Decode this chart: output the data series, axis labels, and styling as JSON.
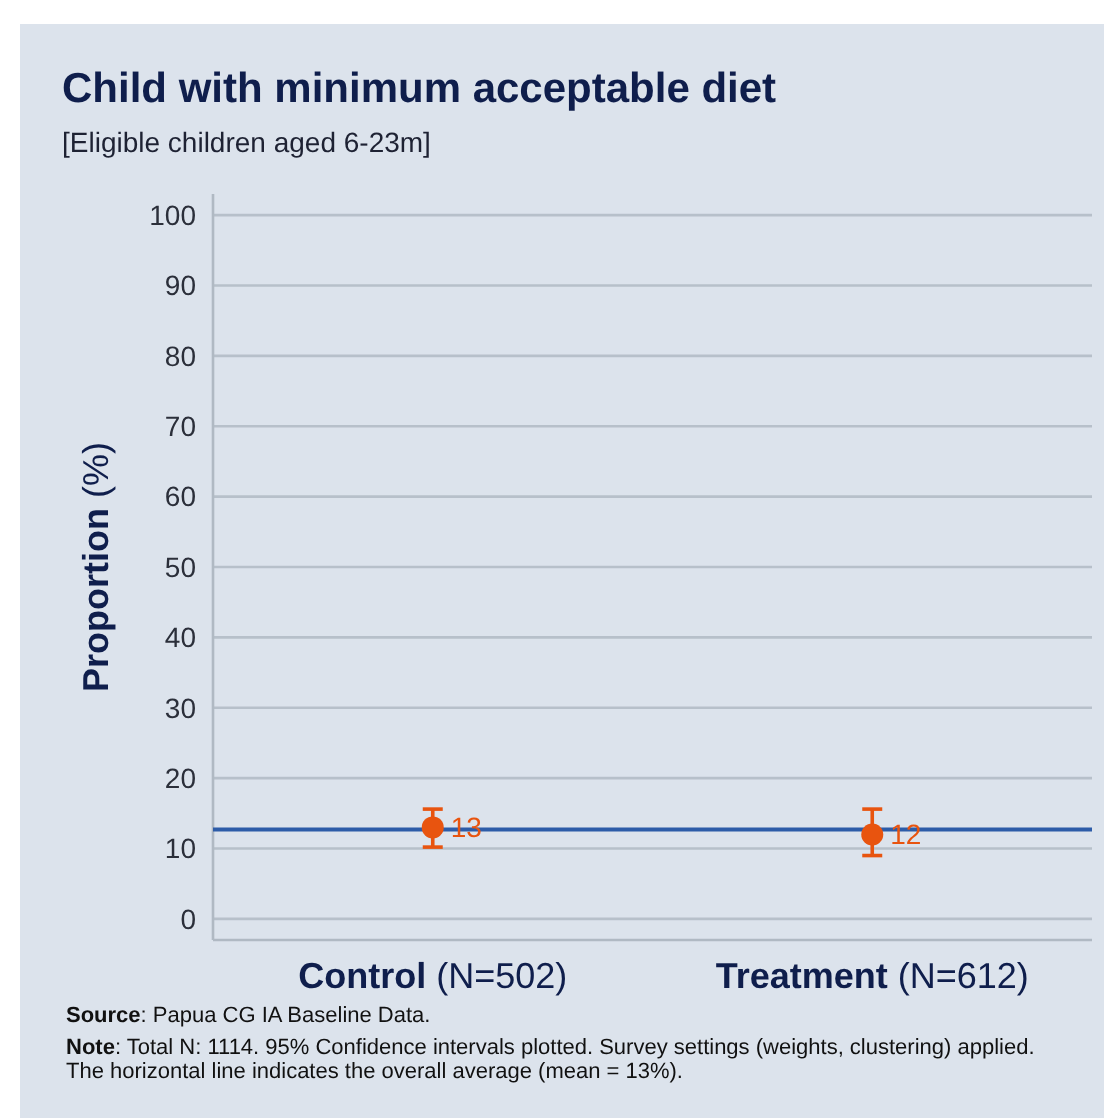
{
  "chart_data": {
    "type": "scatter",
    "title": "Child with minimum acceptable diet",
    "subtitle": "[Eligible children aged 6-23m]",
    "ylabel": "Proportion (%)",
    "categories": [
      "Control (N=502)",
      "Treatment (N=612)"
    ],
    "values": [
      13,
      12
    ],
    "color": "#e8540f",
    "errors": [
      [
        10.2,
        15.6
      ],
      [
        9.0,
        15.6
      ]
    ],
    "ylim": [
      -3,
      103
    ],
    "yticks": [
      0,
      10,
      20,
      30,
      40,
      50,
      60,
      70,
      80,
      90,
      100
    ],
    "grid": "y",
    "marker": "circle",
    "data_labels": true,
    "ref_lines": [
      {
        "axis": "y",
        "value": 12.7,
        "color": "#2d5ca8"
      }
    ],
    "annotations": [
      "Source: Papua CG IA Baseline Data.",
      "Note: Total N: 1114. 95% Confidence intervals plotted. Survey settings (weights, clustering) applied. The horizontal line indicates the overall average (mean = 13%)."
    ]
  }
}
